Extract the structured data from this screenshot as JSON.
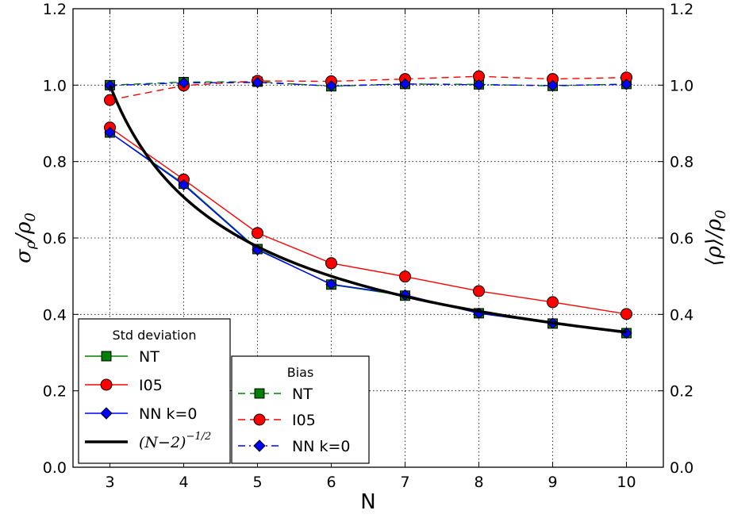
{
  "chart_data": {
    "type": "line",
    "x_label": "N",
    "y_label_left": "σ_ρ / ρ_0",
    "y_label_right": "⟨ρ⟩ / ρ_0",
    "xlim": [
      2.5,
      10.5
    ],
    "ylim": [
      0.0,
      1.2
    ],
    "x_ticks": [
      3,
      4,
      5,
      6,
      7,
      8,
      9,
      10
    ],
    "y_ticks": [
      "0.0",
      "0.2",
      "0.4",
      "0.6",
      "0.8",
      "1.0",
      "1.2"
    ],
    "grid": true,
    "x": [
      3,
      4,
      5,
      6,
      7,
      8,
      9,
      10
    ],
    "series": [
      {
        "name": "NT",
        "group": "std",
        "color": "#008000",
        "marker": "square",
        "style": "solid",
        "values": [
          0.876,
          0.742,
          0.571,
          0.478,
          0.449,
          0.403,
          0.376,
          0.351
        ]
      },
      {
        "name": "I05",
        "group": "std",
        "color": "#ff0000",
        "marker": "circle",
        "style": "solid",
        "values": [
          0.889,
          0.753,
          0.613,
          0.534,
          0.499,
          0.461,
          0.432,
          0.401
        ]
      },
      {
        "name": "NN k=0",
        "group": "std",
        "color": "#0000ff",
        "marker": "diamond",
        "style": "solid",
        "values": [
          0.876,
          0.739,
          0.569,
          0.479,
          0.451,
          0.403,
          0.377,
          0.351
        ]
      },
      {
        "name": "NT",
        "group": "bias",
        "color": "#008000",
        "marker": "square",
        "style": "dashed",
        "values": [
          1.0,
          1.008,
          1.009,
          0.997,
          1.003,
          1.002,
          0.998,
          1.003
        ]
      },
      {
        "name": "I05",
        "group": "bias",
        "color": "#ff0000",
        "marker": "circle",
        "style": "dashed",
        "values": [
          0.961,
          0.999,
          1.011,
          1.01,
          1.016,
          1.023,
          1.016,
          1.02
        ]
      },
      {
        "name": "NN k=0",
        "group": "bias",
        "color": "#0000ff",
        "marker": "diamond",
        "style": "dashdot",
        "values": [
          0.999,
          1.006,
          1.007,
          0.998,
          1.003,
          1.001,
          0.999,
          1.002
        ]
      }
    ],
    "curve": {
      "name": "(N−2)^−1/2",
      "color": "#000000",
      "formula": "(N-2)^(-1/2)",
      "x_range": [
        3,
        10
      ]
    },
    "legends": [
      {
        "title": "Std deviation",
        "placement": "lower-left",
        "entries": [
          "NT",
          "I05",
          "NN k=0",
          "(N−2)^−1/2"
        ]
      },
      {
        "title": "Bias",
        "placement": "lower-center",
        "entries": [
          "NT",
          "I05",
          "NN k=0"
        ]
      }
    ]
  }
}
